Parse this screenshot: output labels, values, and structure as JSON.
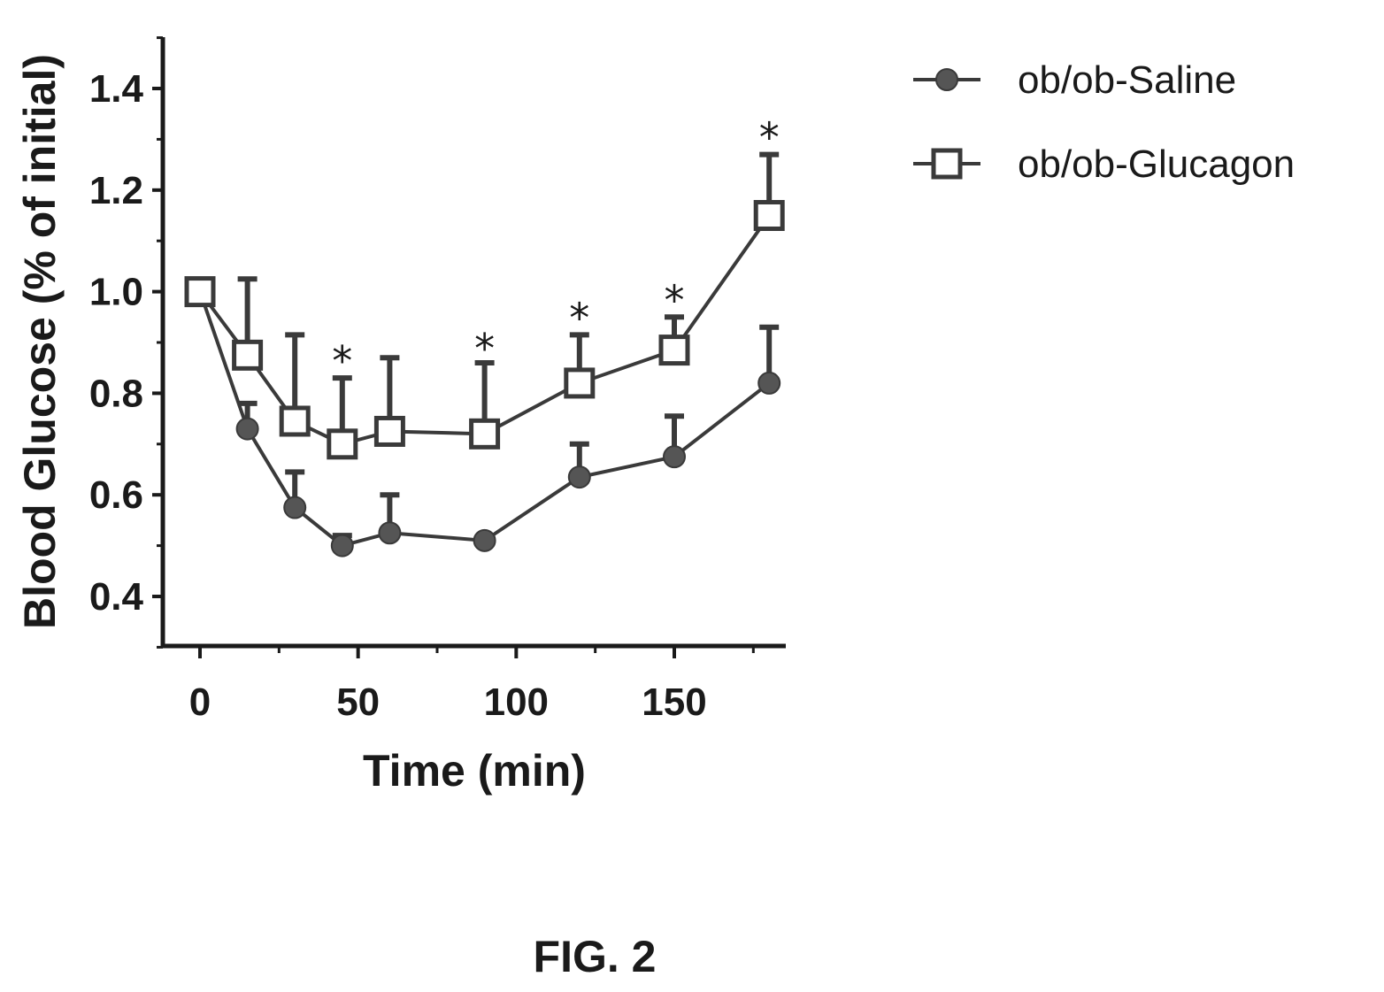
{
  "chart_data": {
    "type": "line",
    "title": "",
    "xlabel": "Time (min)",
    "ylabel": "Blood Glucose (% of initial)",
    "xlim": [
      -10,
      182
    ],
    "ylim": [
      0.3,
      1.5
    ],
    "xticks": [
      0,
      50,
      100,
      150
    ],
    "yticks": [
      0.4,
      0.6,
      0.8,
      1.0,
      1.2,
      1.4
    ],
    "ytick_labels": [
      "0.4",
      "0.6",
      "0.8",
      "1.0",
      "1.2",
      "1.4"
    ],
    "grid": false,
    "legend_position": "right",
    "series": [
      {
        "name": "ob/ob-Saline",
        "marker": "filled-circle",
        "color": "#555555",
        "x": [
          0,
          15,
          30,
          45,
          60,
          90,
          120,
          150,
          180
        ],
        "y": [
          1.0,
          0.73,
          0.575,
          0.5,
          0.525,
          0.51,
          0.635,
          0.675,
          0.82
        ],
        "error_upper": [
          0.0,
          0.05,
          0.07,
          0.02,
          0.075,
          0.0,
          0.065,
          0.08,
          0.11
        ]
      },
      {
        "name": "ob/ob-Glucagon",
        "marker": "open-square",
        "color": "#3a3a3a",
        "x": [
          0,
          15,
          30,
          45,
          60,
          90,
          120,
          150,
          180
        ],
        "y": [
          1.0,
          0.875,
          0.745,
          0.7,
          0.725,
          0.72,
          0.82,
          0.885,
          1.15
        ],
        "error_upper": [
          0.0,
          0.15,
          0.17,
          0.13,
          0.145,
          0.14,
          0.095,
          0.065,
          0.12
        ]
      }
    ],
    "annotations": [
      {
        "text": "*",
        "x": 45,
        "y": 0.87
      },
      {
        "text": "*",
        "x": 90,
        "y": 0.895
      },
      {
        "text": "*",
        "x": 120,
        "y": 0.955
      },
      {
        "text": "*",
        "x": 150,
        "y": 0.99
      },
      {
        "text": "*",
        "x": 180,
        "y": 1.31
      }
    ]
  },
  "caption": "FIG. 2"
}
